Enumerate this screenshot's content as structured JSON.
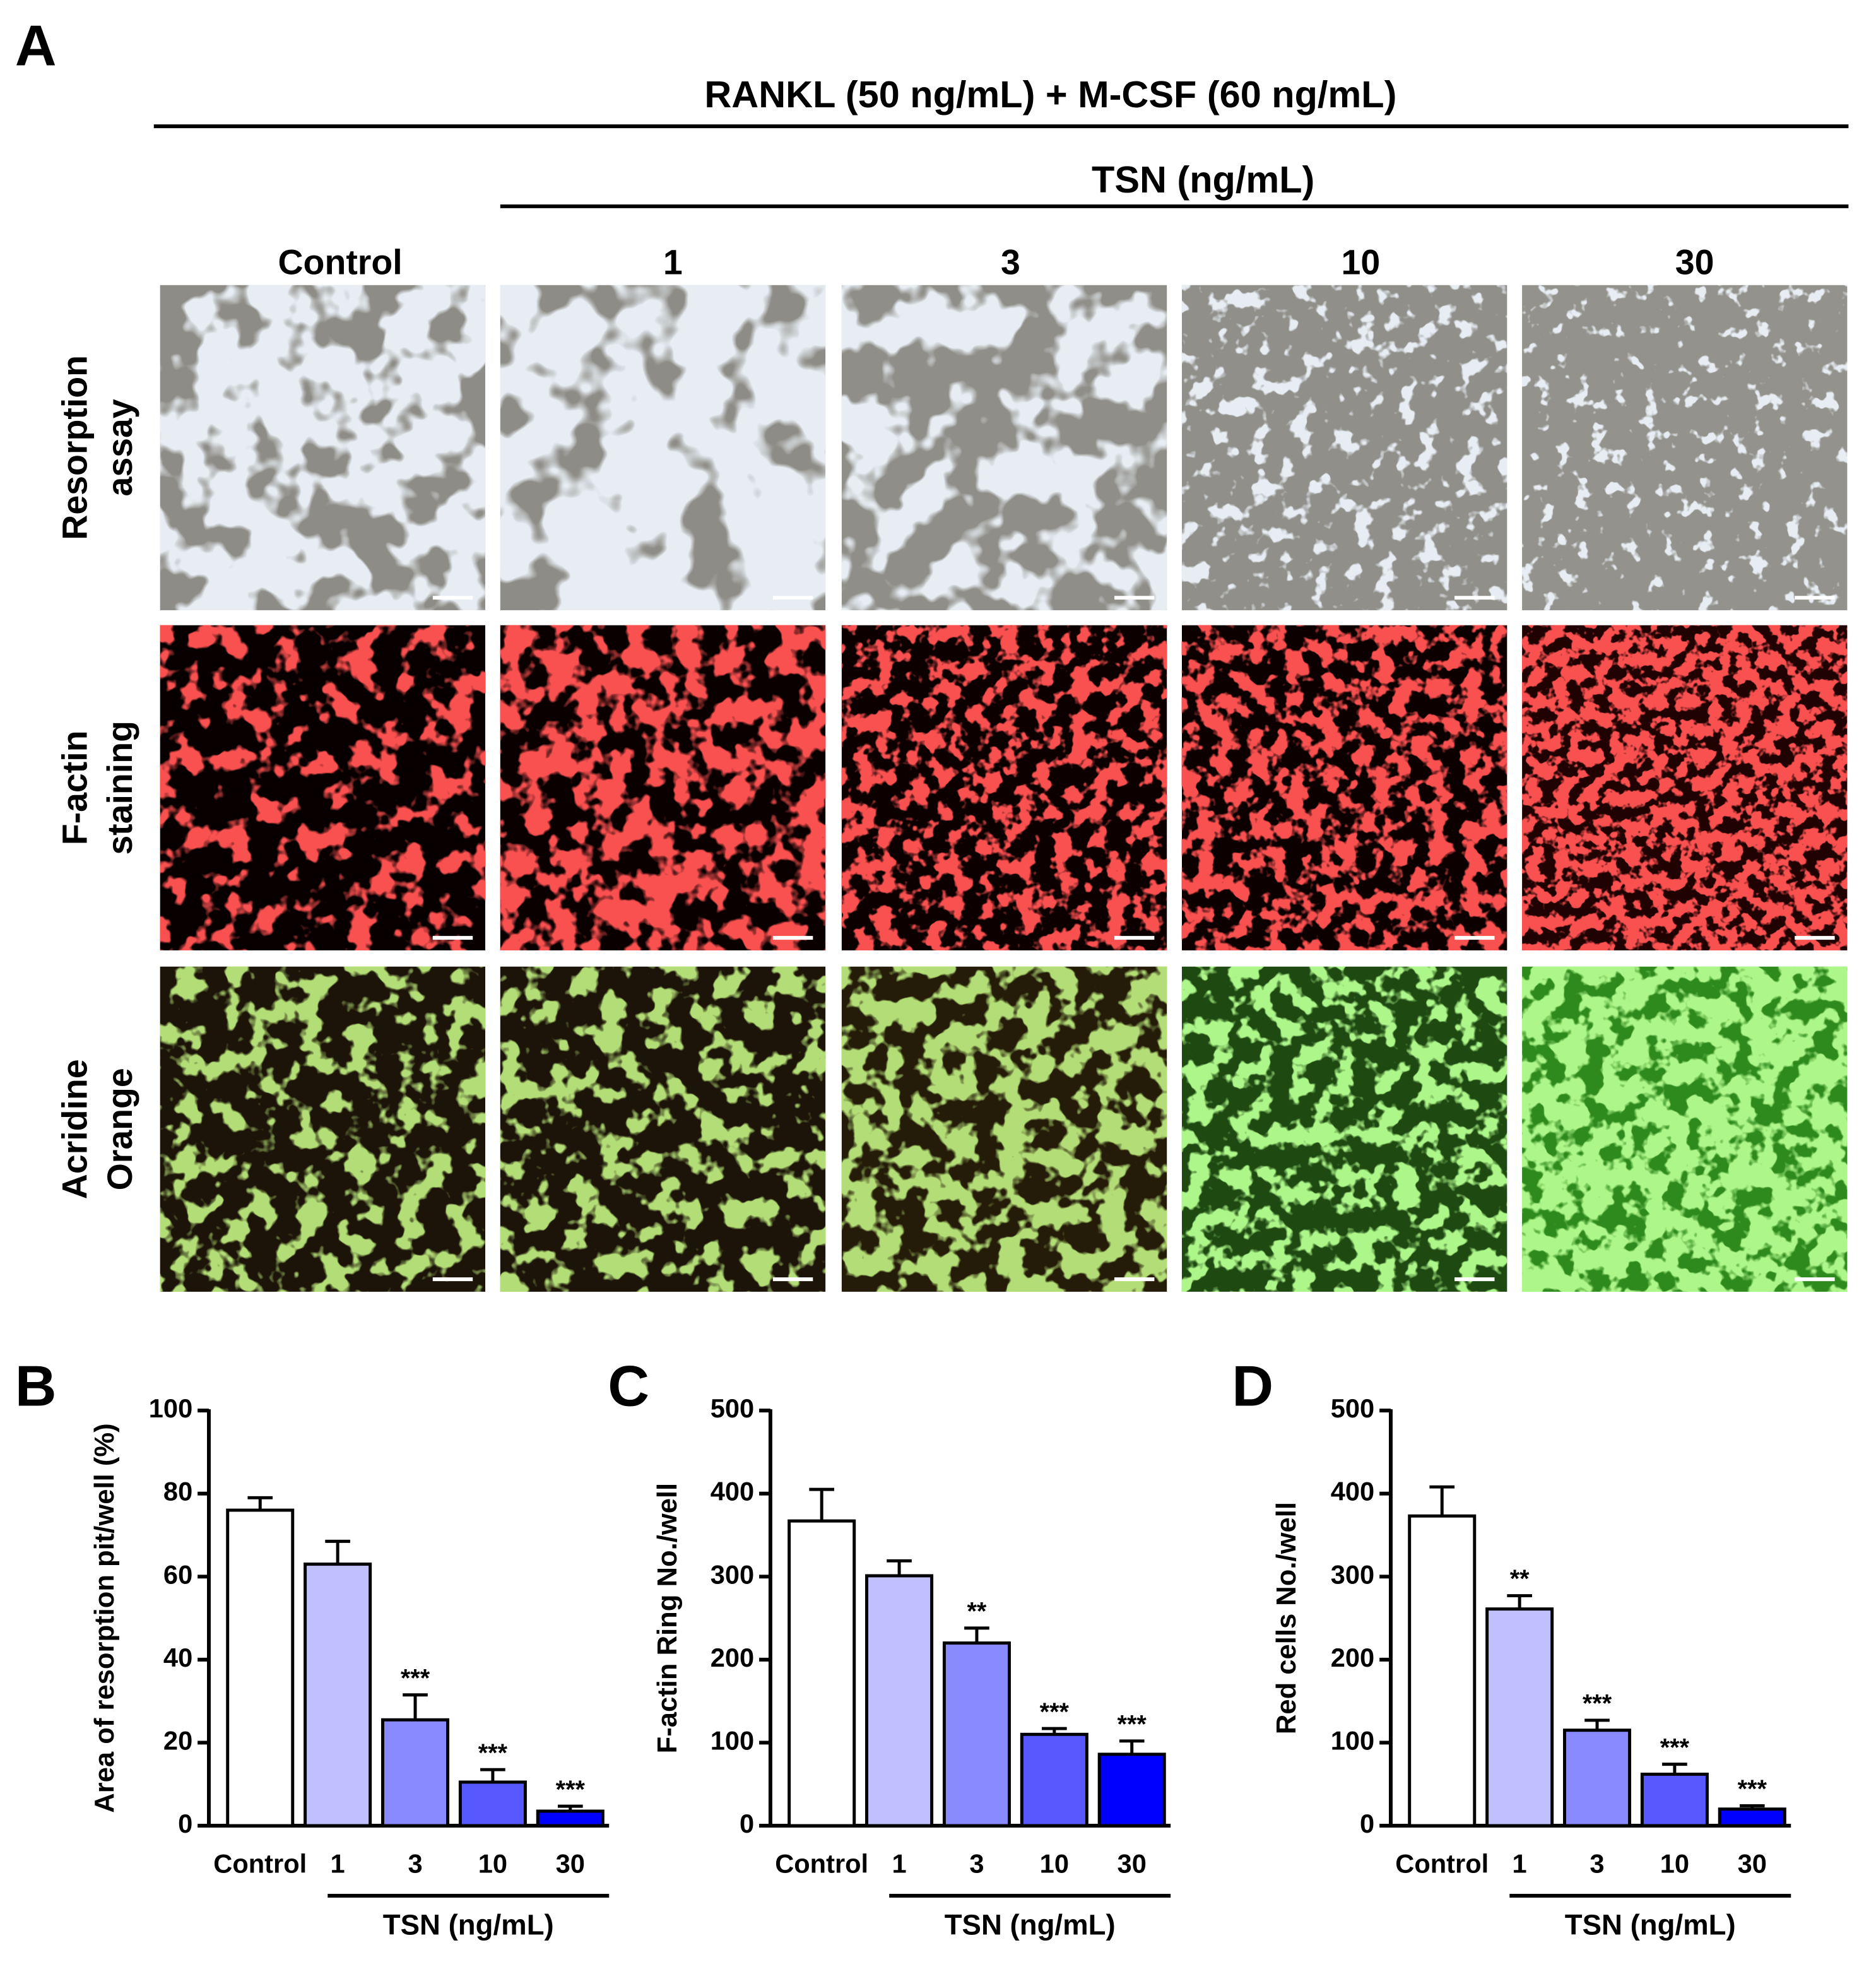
{
  "panel_a": {
    "label": "A",
    "title": "RANKL (50 ng/mL) + M-CSF (60 ng/mL)",
    "subtitle": "TSN (ng/mL)",
    "columns": [
      "Control",
      "1",
      "3",
      "10",
      "30"
    ],
    "rows": [
      [
        "Resorption",
        "assay"
      ],
      [
        "F-actin",
        "staining"
      ],
      [
        "Acridine",
        "Orange"
      ]
    ]
  },
  "chart_data": [
    {
      "type": "bar",
      "panel": "B",
      "ylabel": "Area of resorption pit/well (%)",
      "group_label": "TSN (ng/mL)",
      "categories": [
        "Control",
        "1",
        "3",
        "10",
        "30"
      ],
      "values": [
        76,
        63,
        25.5,
        10.5,
        3.5
      ],
      "errors": [
        3,
        5.5,
        6,
        3,
        1.2
      ],
      "annotations": [
        null,
        null,
        "***",
        "***",
        "***"
      ],
      "colors": [
        "#ffffff",
        "#c0c0ff",
        "#8a8aff",
        "#5858ff",
        "#0000ff"
      ],
      "ylim": [
        0,
        100
      ],
      "yticks": [
        0,
        20,
        40,
        60,
        80,
        100
      ]
    },
    {
      "type": "bar",
      "panel": "C",
      "ylabel": "F-actin Ring No./well",
      "group_label": "TSN (ng/mL)",
      "categories": [
        "Control",
        "1",
        "3",
        "10",
        "30"
      ],
      "values": [
        367,
        301,
        220,
        110,
        86
      ],
      "errors": [
        38,
        18,
        18,
        7,
        16
      ],
      "annotations": [
        null,
        null,
        "**",
        "***",
        "***"
      ],
      "colors": [
        "#ffffff",
        "#c0c0ff",
        "#8a8aff",
        "#5858ff",
        "#0000ff"
      ],
      "ylim": [
        0,
        500
      ],
      "yticks": [
        0,
        100,
        200,
        300,
        400,
        500
      ]
    },
    {
      "type": "bar",
      "panel": "D",
      "ylabel": "Red cells No./well",
      "group_label": "TSN (ng/mL)",
      "categories": [
        "Control",
        "1",
        "3",
        "10",
        "30"
      ],
      "values": [
        373,
        261,
        115,
        62,
        20
      ],
      "errors": [
        35,
        16,
        12,
        12,
        4
      ],
      "annotations": [
        null,
        "**",
        "***",
        "***",
        "***"
      ],
      "colors": [
        "#ffffff",
        "#c0c0ff",
        "#8a8aff",
        "#5858ff",
        "#0000ff"
      ],
      "ylim": [
        0,
        500
      ],
      "yticks": [
        0,
        100,
        200,
        300,
        400,
        500
      ]
    }
  ]
}
